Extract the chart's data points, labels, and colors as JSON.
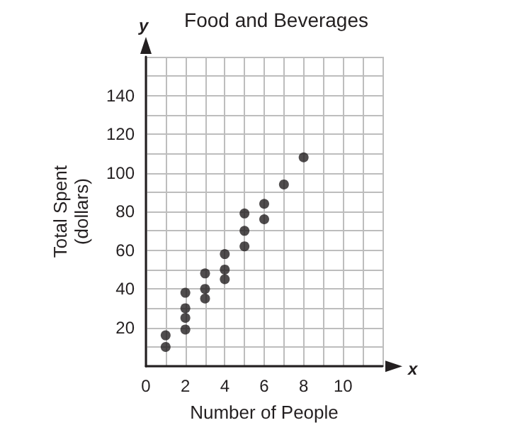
{
  "chart_data": {
    "type": "scatter",
    "title": "Food and Beverages",
    "xlabel": "Number of People",
    "ylabel": "Total Spent\n(dollars)",
    "annotations": [
      "x",
      "y"
    ],
    "x": [
      1,
      1,
      2,
      2,
      2,
      2,
      3,
      3,
      3,
      4,
      4,
      4,
      5,
      5,
      5,
      6,
      6,
      7,
      8
    ],
    "values": [
      16,
      10,
      38,
      30,
      25,
      19,
      48,
      40,
      35,
      58,
      50,
      45,
      79,
      70,
      62,
      84,
      76,
      94,
      108
    ],
    "color": "#231f20",
    "marker": "circle",
    "grid": true,
    "xlim": [
      0,
      12
    ],
    "xticks": [
      0,
      {
        "value": 1,
        "label": null
      },
      2,
      {
        "value": 3,
        "label": null
      },
      4,
      {
        "value": 5,
        "label": null
      },
      6,
      {
        "value": 7,
        "label": null
      },
      8,
      {
        "value": 9,
        "label": null
      },
      10,
      {
        "value": 11,
        "label": null
      },
      {
        "value": 12,
        "label": null
      }
    ],
    "ylim": [
      0,
      160
    ],
    "yticks": [
      {
        "value": 0,
        "label": null
      },
      {
        "value": 10,
        "label": null
      },
      20,
      {
        "value": 30,
        "label": null
      },
      40,
      {
        "value": 50,
        "label": null
      },
      60,
      {
        "value": 70,
        "label": null
      },
      80,
      {
        "value": 90,
        "label": null
      },
      100,
      {
        "value": 110,
        "label": null
      },
      120,
      {
        "value": 130,
        "label": null
      },
      140,
      {
        "value": 150,
        "label": null
      },
      {
        "value": 160,
        "label": null
      }
    ]
  }
}
